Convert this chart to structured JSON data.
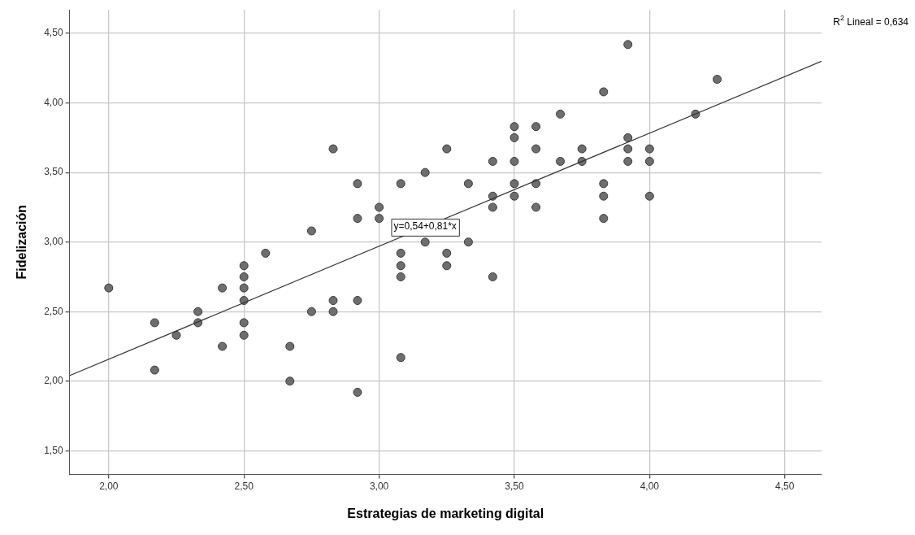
{
  "chart_data": {
    "type": "scatter",
    "xlabel": "Estrategias de marketing digital",
    "ylabel": "Fidelización",
    "xlim": [
      1.855,
      4.636
    ],
    "ylim": [
      1.33,
      4.67
    ],
    "xticks": [
      {
        "value": 2,
        "label": "2,00"
      },
      {
        "value": 2.5,
        "label": "2,50"
      },
      {
        "value": 3,
        "label": "3,00"
      },
      {
        "value": 3.5,
        "label": "3,50"
      },
      {
        "value": 4,
        "label": "4,00"
      },
      {
        "value": 4.5,
        "label": "4,50"
      }
    ],
    "yticks": [
      {
        "value": 1.5,
        "label": "1,50"
      },
      {
        "value": 2,
        "label": "2,00"
      },
      {
        "value": 2.5,
        "label": "2,50"
      },
      {
        "value": 3,
        "label": "3,00"
      },
      {
        "value": 3.5,
        "label": "3,50"
      },
      {
        "value": 4,
        "label": "4,00"
      },
      {
        "value": 4.5,
        "label": "4,50"
      }
    ],
    "grid": true,
    "legend": false,
    "marker": "circle",
    "series": [
      {
        "color": "#6e6e6e",
        "x": [
          2.0,
          2.17,
          2.17,
          2.25,
          2.33,
          2.33,
          2.42,
          2.42,
          2.5,
          2.5,
          2.5,
          2.5,
          2.5,
          2.5,
          2.58,
          2.67,
          2.67,
          2.75,
          2.75,
          2.83,
          2.83,
          2.83,
          2.92,
          2.92,
          2.92,
          2.92,
          3.0,
          3.0,
          3.08,
          3.08,
          3.08,
          3.08,
          3.08,
          3.17,
          3.17,
          3.25,
          3.25,
          3.25,
          3.33,
          3.33,
          3.42,
          3.42,
          3.42,
          3.42,
          3.5,
          3.5,
          3.5,
          3.5,
          3.5,
          3.58,
          3.58,
          3.58,
          3.58,
          3.67,
          3.67,
          3.75,
          3.75,
          3.83,
          3.83,
          3.83,
          3.83,
          3.92,
          3.92,
          3.92,
          3.92,
          4.0,
          4.0,
          4.0,
          4.17,
          4.25
        ],
        "values": [
          2.67,
          2.42,
          2.08,
          2.33,
          2.5,
          2.42,
          2.67,
          2.25,
          2.83,
          2.75,
          2.67,
          2.58,
          2.42,
          2.33,
          2.92,
          2.25,
          2.0,
          3.08,
          2.5,
          3.67,
          2.58,
          2.5,
          3.42,
          3.17,
          2.58,
          1.92,
          3.25,
          3.17,
          3.42,
          2.92,
          2.83,
          2.75,
          2.17,
          3.5,
          3.0,
          3.67,
          2.92,
          2.83,
          3.42,
          3.0,
          3.58,
          3.33,
          3.25,
          2.75,
          3.83,
          3.75,
          3.58,
          3.42,
          3.33,
          3.83,
          3.67,
          3.42,
          3.25,
          3.92,
          3.58,
          3.67,
          3.58,
          4.08,
          3.42,
          3.33,
          3.17,
          4.42,
          3.75,
          3.67,
          3.58,
          3.67,
          3.58,
          3.33,
          3.92,
          4.17
        ]
      },
      {
        "type": "line",
        "color": "#333333",
        "marker": "none",
        "x": [
          1.855,
          4.636
        ],
        "values": [
          2.04,
          4.3
        ]
      }
    ],
    "annotations": [
      {
        "text": "y=0,54+0,81*x",
        "x": 3.17,
        "y": 3.11
      },
      "R$^{2}$ Lineal = 0,634"
    ]
  }
}
